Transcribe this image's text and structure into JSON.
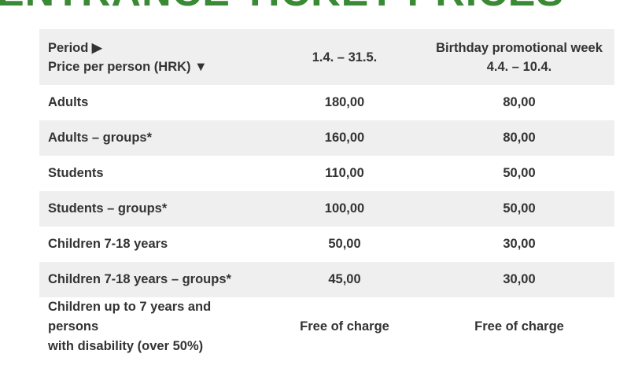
{
  "title": "ENTRANCE TICKET PRICES",
  "header": {
    "period_label": "Period ▶",
    "price_label": "Price per person (HRK) ▼",
    "col2": "1.4. – 31.5.",
    "col3_line1": "Birthday promotional week",
    "col3_line2": "4.4. – 10.4."
  },
  "rows": [
    {
      "category": "Adults",
      "regular": "180,00",
      "promo": "80,00"
    },
    {
      "category": "Adults – groups*",
      "regular": "160,00",
      "promo": "80,00"
    },
    {
      "category": "Students",
      "regular": "110,00",
      "promo": "50,00"
    },
    {
      "category": "Students – groups*",
      "regular": "100,00",
      "promo": "50,00"
    },
    {
      "category": "Children 7-18 years",
      "regular": "50,00",
      "promo": "30,00"
    },
    {
      "category": "Children 7-18 years – groups*",
      "regular": "45,00",
      "promo": "30,00"
    }
  ],
  "last_row": {
    "category_line1": "Children up to 7 years and persons",
    "category_line2": "with disability (over 50%)",
    "regular": "Free of charge",
    "promo": "Free of charge"
  },
  "colors": {
    "title": "#3a8a35",
    "stripe": "#efefef"
  }
}
